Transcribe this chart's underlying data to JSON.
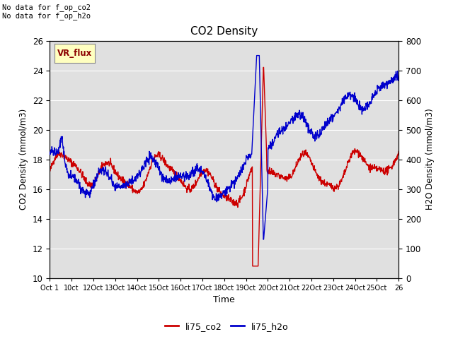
{
  "title": "CO2 Density",
  "xlabel": "Time",
  "ylabel_left": "CO2 Density (mmol/m3)",
  "ylabel_right": "H2O Density (mmol/m3)",
  "ylim_left": [
    10,
    26
  ],
  "ylim_right": [
    0,
    800
  ],
  "xtick_labels": [
    "Oct 1",
    "10ct",
    "12Oct",
    "13Oct",
    "14Oct",
    "15Oct",
    "16Oct",
    "17Oct",
    "18Oct",
    "19Oct",
    "20Oct",
    "21Oct",
    "22Oct",
    "23Oct",
    "24Oct",
    "25Oct",
    "26"
  ],
  "annotation_text": "No data for f_op_co2\nNo data for f_op_h2o",
  "legend_box_label": "VR_flux",
  "legend_box_color": "#FFFFC0",
  "legend_box_text_color": "#8B0000",
  "line_co2_color": "#CC0000",
  "line_h2o_color": "#0000CC",
  "background_color": "#E0E0E0",
  "grid_color": "#FFFFFF",
  "legend_entries": [
    "li75_co2",
    "li75_h2o"
  ],
  "figsize": [
    6.4,
    4.8
  ],
  "dpi": 100
}
